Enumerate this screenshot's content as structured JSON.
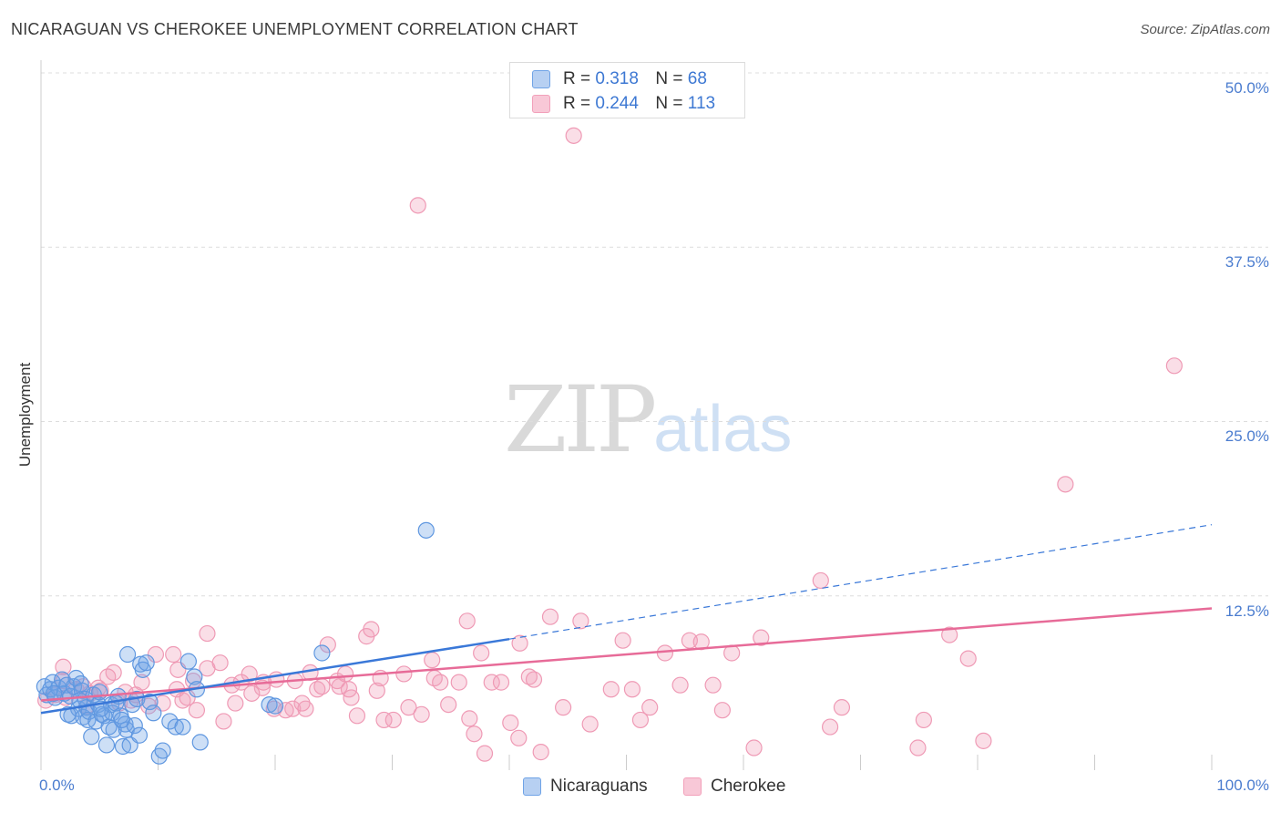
{
  "header": {
    "title": "NICARAGUAN VS CHEROKEE UNEMPLOYMENT CORRELATION CHART",
    "source": "Source: ZipAtlas.com"
  },
  "legend": {
    "r_label": "R =",
    "n_label": "N =",
    "series": [
      {
        "name": "Nicaraguans",
        "r": "0.318",
        "n": "68"
      },
      {
        "name": "Cherokee",
        "r": "0.244",
        "n": "113"
      }
    ]
  },
  "watermark": {
    "zip": "ZIP",
    "atlas": "atlas"
  },
  "chart_data": {
    "type": "scatter",
    "title": "NICARAGUAN VS CHEROKEE UNEMPLOYMENT CORRELATION CHART",
    "xlabel": "",
    "ylabel": "Unemployment",
    "xlim": [
      0,
      100
    ],
    "ylim": [
      0,
      50
    ],
    "x_tick_labels": [
      "0.0%",
      "100.0%"
    ],
    "y_tick_labels": [
      "50.0%",
      "37.5%",
      "25.0%",
      "12.5%"
    ],
    "y_ticks": [
      50,
      37.5,
      25,
      12.5
    ],
    "grid": true,
    "colors": {
      "Nicaraguans": "#6fa3e6",
      "Cherokee": "#f2a0ba",
      "Nicaraguans_line": "#3a78d8",
      "Cherokee_line": "#e76b98"
    },
    "series": [
      {
        "name": "Nicaraguans",
        "points": [
          [
            0.3,
            6.0
          ],
          [
            0.5,
            5.4
          ],
          [
            0.8,
            5.8
          ],
          [
            1.0,
            6.3
          ],
          [
            1.2,
            5.2
          ],
          [
            1.5,
            5.9
          ],
          [
            1.8,
            6.5
          ],
          [
            2.0,
            5.5
          ],
          [
            2.2,
            6.1
          ],
          [
            2.5,
            5.3
          ],
          [
            2.6,
            3.9
          ],
          [
            2.8,
            6.0
          ],
          [
            3.0,
            6.6
          ],
          [
            3.2,
            4.4
          ],
          [
            3.4,
            6.2
          ],
          [
            3.5,
            5.7
          ],
          [
            3.6,
            3.8
          ],
          [
            3.8,
            5.1
          ],
          [
            3.9,
            4.5
          ],
          [
            4.0,
            3.6
          ],
          [
            4.1,
            4.2
          ],
          [
            4.3,
            2.4
          ],
          [
            4.5,
            5.4
          ],
          [
            4.7,
            3.5
          ],
          [
            4.9,
            4.7
          ],
          [
            5.0,
            5.6
          ],
          [
            5.2,
            4.0
          ],
          [
            5.4,
            3.9
          ],
          [
            5.6,
            1.8
          ],
          [
            5.8,
            3.1
          ],
          [
            6.0,
            4.7
          ],
          [
            6.1,
            4.1
          ],
          [
            6.2,
            2.9
          ],
          [
            6.4,
            4.8
          ],
          [
            6.6,
            5.3
          ],
          [
            6.8,
            3.9
          ],
          [
            7.0,
            1.7
          ],
          [
            7.2,
            3.3
          ],
          [
            7.3,
            2.9
          ],
          [
            7.4,
            8.3
          ],
          [
            7.6,
            1.8
          ],
          [
            7.8,
            4.7
          ],
          [
            8.0,
            3.2
          ],
          [
            8.2,
            5.1
          ],
          [
            8.5,
            7.6
          ],
          [
            8.7,
            7.2
          ],
          [
            9.0,
            7.7
          ],
          [
            9.3,
            4.9
          ],
          [
            10.1,
            1.0
          ],
          [
            10.4,
            1.4
          ],
          [
            11.0,
            3.5
          ],
          [
            11.5,
            3.1
          ],
          [
            12.1,
            3.1
          ],
          [
            12.6,
            7.8
          ],
          [
            13.1,
            6.7
          ],
          [
            13.3,
            5.8
          ],
          [
            13.6,
            2.0
          ],
          [
            19.5,
            4.7
          ],
          [
            20.0,
            4.6
          ],
          [
            24.0,
            8.4
          ],
          [
            32.9,
            17.2
          ],
          [
            1.1,
            5.5
          ],
          [
            2.3,
            4.0
          ],
          [
            5.1,
            4.4
          ],
          [
            6.9,
            3.6
          ],
          [
            8.4,
            2.5
          ],
          [
            9.6,
            4.1
          ],
          [
            3.3,
            5.0
          ]
        ],
        "trend": {
          "x0": 0,
          "y0": 4.1,
          "x1": 40,
          "y1": 9.4,
          "dashed_to_x": 100,
          "dashed_to_y": 17.6
        }
      },
      {
        "name": "Cherokee",
        "points": [
          [
            45.5,
            45.5
          ],
          [
            32.2,
            40.5
          ],
          [
            96.8,
            29.0
          ],
          [
            87.5,
            20.5
          ],
          [
            66.6,
            13.6
          ],
          [
            14.2,
            9.8
          ],
          [
            36.4,
            10.7
          ],
          [
            43.5,
            11.0
          ],
          [
            46.1,
            10.7
          ],
          [
            61.5,
            9.5
          ],
          [
            27.8,
            9.6
          ],
          [
            28.2,
            10.1
          ],
          [
            33.4,
            7.9
          ],
          [
            37.6,
            8.4
          ],
          [
            40.9,
            9.1
          ],
          [
            24.5,
            9.0
          ],
          [
            23.0,
            7.0
          ],
          [
            25.5,
            6.0
          ],
          [
            21.7,
            6.4
          ],
          [
            20.1,
            6.5
          ],
          [
            18.9,
            5.9
          ],
          [
            17.8,
            6.9
          ],
          [
            16.3,
            6.1
          ],
          [
            14.2,
            7.3
          ],
          [
            13.0,
            6.4
          ],
          [
            12.1,
            5.0
          ],
          [
            11.3,
            8.3
          ],
          [
            9.8,
            8.3
          ],
          [
            8.6,
            6.3
          ],
          [
            7.2,
            5.6
          ],
          [
            6.2,
            7.0
          ],
          [
            5.1,
            5.7
          ],
          [
            4.2,
            5.5
          ],
          [
            3.0,
            5.8
          ],
          [
            2.1,
            5.2
          ],
          [
            1.2,
            5.4
          ],
          [
            0.4,
            5.0
          ],
          [
            1.9,
            6.4
          ],
          [
            3.6,
            6.0
          ],
          [
            4.9,
            5.9
          ],
          [
            6.7,
            4.8
          ],
          [
            8.1,
            5.4
          ],
          [
            10.4,
            4.8
          ],
          [
            11.6,
            5.8
          ],
          [
            12.5,
            5.2
          ],
          [
            13.3,
            4.3
          ],
          [
            15.6,
            3.5
          ],
          [
            16.6,
            4.8
          ],
          [
            18.0,
            5.5
          ],
          [
            19.0,
            6.3
          ],
          [
            19.9,
            4.4
          ],
          [
            21.5,
            4.4
          ],
          [
            22.6,
            4.4
          ],
          [
            23.6,
            5.8
          ],
          [
            25.3,
            6.4
          ],
          [
            26.0,
            6.9
          ],
          [
            26.5,
            5.2
          ],
          [
            27.0,
            3.9
          ],
          [
            28.7,
            5.7
          ],
          [
            29.3,
            3.6
          ],
          [
            30.1,
            3.6
          ],
          [
            31.4,
            4.5
          ],
          [
            32.5,
            4.0
          ],
          [
            33.6,
            6.6
          ],
          [
            34.8,
            4.7
          ],
          [
            35.7,
            6.3
          ],
          [
            36.6,
            3.7
          ],
          [
            37.0,
            2.6
          ],
          [
            38.5,
            6.3
          ],
          [
            39.3,
            6.3
          ],
          [
            40.1,
            3.4
          ],
          [
            40.8,
            2.3
          ],
          [
            41.7,
            6.7
          ],
          [
            42.7,
            1.3
          ],
          [
            44.6,
            4.5
          ],
          [
            46.9,
            3.3
          ],
          [
            48.7,
            5.8
          ],
          [
            49.7,
            9.3
          ],
          [
            50.5,
            5.8
          ],
          [
            51.2,
            3.6
          ],
          [
            52.0,
            4.5
          ],
          [
            53.3,
            8.4
          ],
          [
            55.4,
            9.3
          ],
          [
            56.4,
            9.2
          ],
          [
            58.2,
            4.3
          ],
          [
            59.0,
            8.4
          ],
          [
            60.9,
            1.6
          ],
          [
            67.4,
            3.1
          ],
          [
            68.4,
            4.5
          ],
          [
            74.9,
            1.6
          ],
          [
            75.4,
            3.6
          ],
          [
            77.6,
            9.7
          ],
          [
            79.2,
            8.0
          ],
          [
            80.5,
            2.1
          ],
          [
            1.9,
            7.4
          ],
          [
            3.9,
            4.6
          ],
          [
            5.7,
            6.7
          ],
          [
            7.7,
            5.0
          ],
          [
            9.2,
            4.6
          ],
          [
            11.7,
            7.2
          ],
          [
            15.3,
            7.7
          ],
          [
            17.1,
            6.3
          ],
          [
            20.9,
            4.3
          ],
          [
            22.3,
            4.8
          ],
          [
            24.0,
            6.0
          ],
          [
            26.3,
            5.8
          ],
          [
            29.0,
            6.6
          ],
          [
            31.0,
            6.9
          ],
          [
            34.1,
            6.3
          ],
          [
            37.9,
            1.2
          ],
          [
            42.1,
            6.5
          ],
          [
            54.6,
            6.1
          ],
          [
            57.4,
            6.1
          ]
        ],
        "trend": {
          "x0": 0,
          "y0": 5.0,
          "x1": 100,
          "y1": 11.6
        }
      }
    ]
  }
}
